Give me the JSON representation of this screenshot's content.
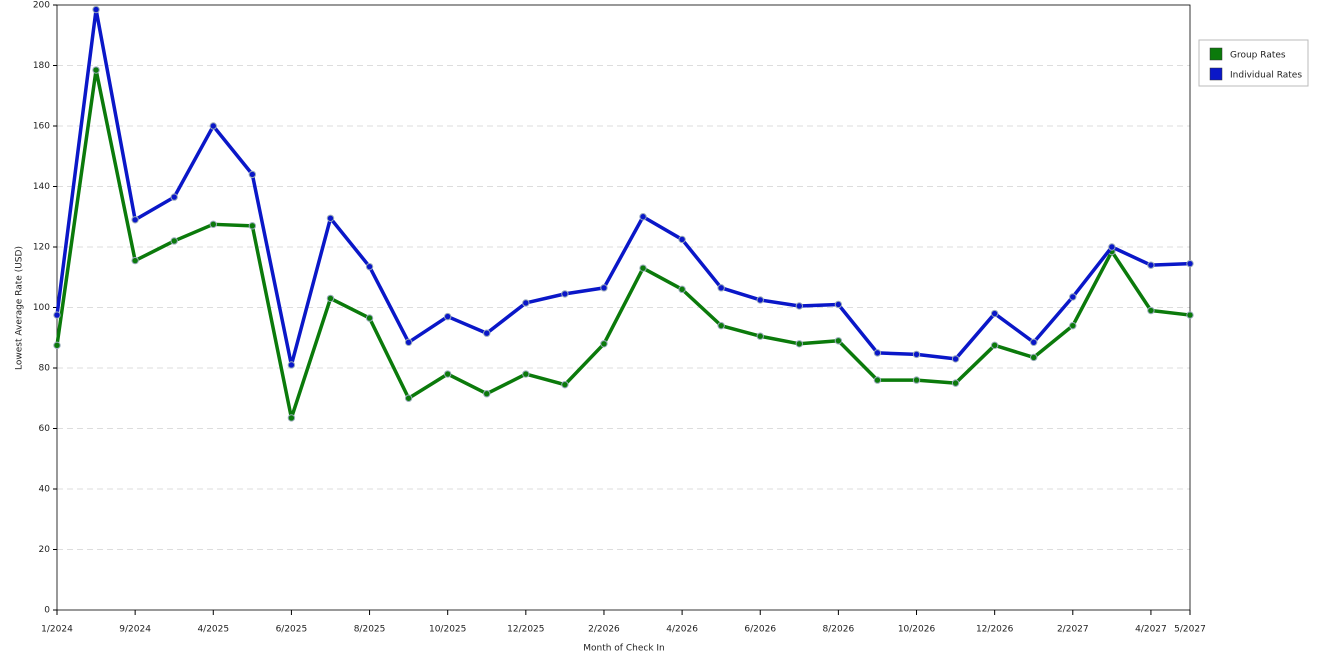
{
  "chart_data": {
    "type": "line",
    "x_label": "Month of Check In",
    "y_label": "Lowest Average Rate (USD)",
    "categories": [
      "1/2024",
      null,
      "9/2024",
      null,
      "4/2025",
      null,
      "6/2025",
      null,
      "8/2025",
      null,
      "10/2025",
      null,
      "12/2025",
      null,
      "2/2026",
      null,
      "4/2026",
      null,
      "6/2026",
      null,
      "8/2026",
      null,
      "10/2026",
      null,
      "12/2026",
      null,
      "2/2027",
      null,
      "4/2027",
      "5/2027"
    ],
    "series": [
      {
        "name": "Group Rates",
        "color": "#0b7a0b",
        "values": [
          87.5,
          178.5,
          115.5,
          122,
          127.5,
          127,
          63.5,
          103,
          96.5,
          70,
          78,
          71.5,
          78,
          74.5,
          88,
          113,
          106,
          94,
          90.5,
          88,
          89,
          76,
          76,
          75,
          87.5,
          83.5,
          94,
          118.5,
          99,
          97.5
        ]
      },
      {
        "name": "Individual Rates",
        "color": "#0a17c8",
        "values": [
          97.5,
          198.5,
          129,
          136.5,
          160,
          144,
          81,
          129.5,
          113.5,
          88.5,
          97,
          91.5,
          101.5,
          104.5,
          106.5,
          130,
          122.5,
          106.5,
          102.5,
          100.5,
          101,
          85,
          84.5,
          83,
          98,
          88.5,
          103.5,
          120,
          114,
          114.5
        ]
      }
    ],
    "ylim": [
      0,
      200
    ],
    "yticks": [
      0,
      20,
      40,
      60,
      80,
      100,
      120,
      140,
      160,
      180,
      200
    ],
    "grid": true,
    "legend": "right"
  }
}
